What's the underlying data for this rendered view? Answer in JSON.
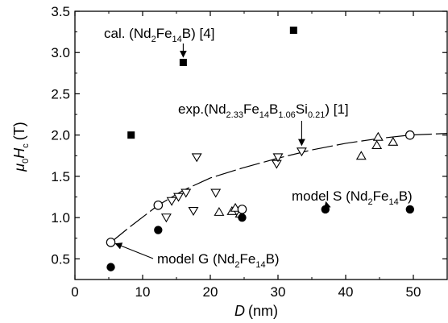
{
  "chart_data": {
    "type": "scatter",
    "xlabel": "D (nm)",
    "xlabel_var": "D",
    "xlabel_unit": "(nm)",
    "ylabel": "μ0Hc (T)",
    "ylabel_unit": "(T)",
    "xlim": [
      0,
      55
    ],
    "ylim": [
      0.25,
      3.5
    ],
    "xticks": [
      0,
      10,
      20,
      30,
      40,
      50
    ],
    "yticks": [
      0.5,
      1.0,
      1.5,
      2.0,
      2.5,
      3.0,
      3.5
    ],
    "ytick_labels": [
      "0.5",
      "1.0",
      "1.5",
      "2.0",
      "2.5",
      "3.0",
      "3.5"
    ],
    "series": [
      {
        "marker": "filled-square",
        "points": [
          [
            8.3,
            2.0
          ],
          [
            16.0,
            2.88
          ],
          [
            32.3,
            3.27
          ]
        ]
      },
      {
        "marker": "open-triangle-down",
        "points": [
          [
            13.5,
            1.0
          ],
          [
            14.3,
            1.2
          ],
          [
            15.3,
            1.25
          ],
          [
            16.4,
            1.3
          ],
          [
            17.5,
            1.08
          ],
          [
            18.0,
            1.73
          ],
          [
            20.8,
            1.3
          ],
          [
            29.8,
            1.65
          ],
          [
            30.0,
            1.73
          ],
          [
            33.5,
            1.8
          ]
        ]
      },
      {
        "marker": "open-triangle-up",
        "points": [
          [
            21.3,
            1.07
          ],
          [
            23.2,
            1.08
          ],
          [
            23.7,
            1.12
          ],
          [
            24.4,
            1.05
          ],
          [
            42.3,
            1.75
          ],
          [
            44.6,
            1.88
          ],
          [
            44.8,
            1.98
          ],
          [
            47.0,
            1.92
          ]
        ]
      },
      {
        "marker": "open-circle",
        "points": [
          [
            5.3,
            0.7
          ],
          [
            12.3,
            1.15
          ],
          [
            24.7,
            1.1
          ],
          [
            49.5,
            2.0
          ]
        ]
      },
      {
        "marker": "filled-circle",
        "points": [
          [
            5.3,
            0.4
          ],
          [
            12.3,
            0.85
          ],
          [
            24.7,
            1.0
          ],
          [
            37.0,
            1.1
          ],
          [
            49.5,
            1.1
          ]
        ]
      }
    ],
    "fit_curve": {
      "style": "dashed",
      "x": [
        5.3,
        8,
        12.3,
        16,
        20,
        24.7,
        30,
        35,
        40,
        45,
        49.5,
        55
      ],
      "y": [
        0.7,
        0.88,
        1.15,
        1.33,
        1.48,
        1.6,
        1.72,
        1.82,
        1.9,
        1.96,
        2.0,
        2.02
      ]
    },
    "annotations": {
      "cal": {
        "prefix": "cal. (Nd",
        "sub1": "2",
        "mid": "Fe",
        "sub2": "14",
        "suffix": "B) [4]",
        "x": 16.0,
        "y": 2.88
      },
      "exp": {
        "prefix": "exp.(Nd",
        "sub1": "2.33",
        "mid1": "Fe",
        "sub2": "14",
        "mid2": "B",
        "sub3": "1.06",
        "mid3": "Si",
        "sub4": "0.21",
        "suffix": ") [1]",
        "x": 33.5,
        "y": 1.8
      },
      "model_s": {
        "prefix": "model S (Nd",
        "sub1": "2",
        "mid": "Fe",
        "sub2": "14",
        "suffix": "B)",
        "x": 37.0,
        "y": 1.1
      },
      "model_g": {
        "prefix": "model G  (Nd",
        "sub1": "2",
        "mid": "Fe",
        "sub2": "14",
        "suffix": "B)",
        "x": 5.3,
        "y": 0.7
      }
    }
  }
}
